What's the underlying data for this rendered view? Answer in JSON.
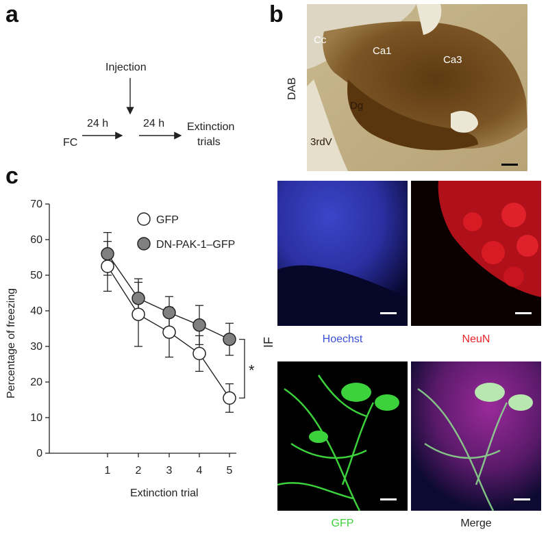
{
  "panels": {
    "a": "a",
    "b": "b",
    "c": "c"
  },
  "schematic": {
    "injection": "Injection",
    "fc": "FC",
    "interval1": "24 h",
    "interval2": "24 h",
    "extinction_line1": "Extinction",
    "extinction_line2": "trials"
  },
  "histology": {
    "dab_label": "DAB",
    "regions": {
      "cc": "Cc",
      "ca1": "Ca1",
      "ca3": "Ca3",
      "dg": "Dg",
      "third_ventricle": "3rdV"
    },
    "if_label": "IF",
    "captions": {
      "hoechst": "Hoechst",
      "neun": "NeuN",
      "gfp": "GFP",
      "merge": "Merge"
    },
    "colors": {
      "dab": "#7a5424",
      "hoechst": "#3a4fd8",
      "neun": "#e8232a",
      "gfp": "#3cd23c",
      "merge_caption": "#222222"
    }
  },
  "chart_data": {
    "type": "line",
    "xlabel": "Extinction trial",
    "ylabel": "Percentage of freezing",
    "x": [
      1,
      2,
      3,
      4,
      5
    ],
    "ylim": [
      0,
      70
    ],
    "yticks": [
      0,
      10,
      20,
      30,
      40,
      50,
      60,
      70
    ],
    "grid": false,
    "legend_position": "top-right",
    "series": [
      {
        "name": "GFP",
        "marker": "open-circle",
        "color": "#ffffff",
        "values": [
          52.5,
          39,
          34,
          28,
          15.5
        ],
        "errors": [
          7,
          9,
          7,
          5,
          4
        ]
      },
      {
        "name": "DN-PAK-1–GFP",
        "marker": "filled-circle",
        "color": "#808080",
        "values": [
          56,
          43.5,
          39.5,
          36,
          32
        ],
        "errors": [
          6,
          5.5,
          4.5,
          5.5,
          4.5
        ]
      }
    ],
    "significance": "*"
  }
}
